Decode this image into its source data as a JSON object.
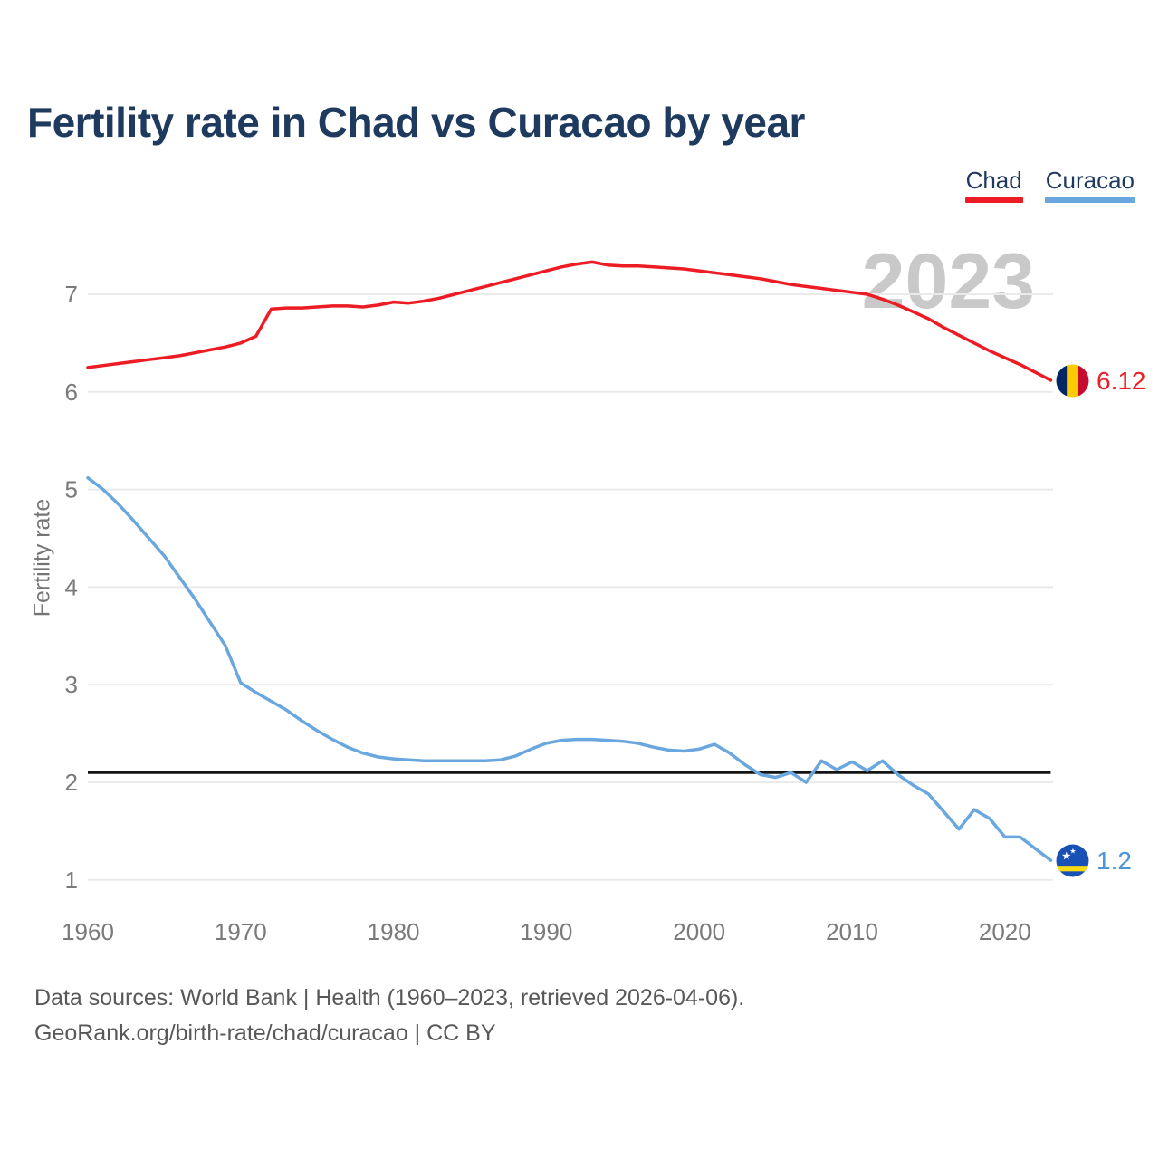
{
  "header": {
    "title": "Fertility rate in Chad vs Curacao by year"
  },
  "legend": {
    "items": [
      {
        "label": "Chad",
        "color": "#ed1c24"
      },
      {
        "label": "Curacao",
        "color": "#6aa7df"
      }
    ]
  },
  "watermark": "2023",
  "axes": {
    "y_label": "Fertility rate",
    "y_ticks": [
      1,
      2,
      3,
      4,
      5,
      6,
      7
    ],
    "x_ticks": [
      1960,
      1970,
      1980,
      1990,
      2000,
      2010,
      2020
    ]
  },
  "benchmark": {
    "value": 2.1,
    "color": "#141414"
  },
  "end_labels": {
    "chad": {
      "value": "6.12"
    },
    "curacao": {
      "value": "1.2"
    }
  },
  "footer": {
    "line1": "Data sources: World Bank | Health (1960–2023, retrieved 2026-04-06).",
    "line2": "GeoRank.org/birth-rate/chad/curacao | CC BY"
  },
  "chart_data": {
    "type": "line",
    "title": "Fertility rate in Chad vs Curacao by year",
    "xlabel": "",
    "ylabel": "Fertility rate",
    "xlim": [
      1960,
      2023
    ],
    "ylim": [
      0.8,
      7.5
    ],
    "grid": true,
    "legend_position": "top-right",
    "benchmark_line": 2.1,
    "watermark": "2023",
    "x": [
      1960,
      1961,
      1962,
      1963,
      1964,
      1965,
      1966,
      1967,
      1968,
      1969,
      1970,
      1971,
      1972,
      1973,
      1974,
      1975,
      1976,
      1977,
      1978,
      1979,
      1980,
      1981,
      1982,
      1983,
      1984,
      1985,
      1986,
      1987,
      1988,
      1989,
      1990,
      1991,
      1992,
      1993,
      1994,
      1995,
      1996,
      1997,
      1998,
      1999,
      2000,
      2001,
      2002,
      2003,
      2004,
      2005,
      2006,
      2007,
      2008,
      2009,
      2010,
      2011,
      2012,
      2013,
      2014,
      2015,
      2016,
      2017,
      2018,
      2019,
      2020,
      2021,
      2022,
      2023
    ],
    "series": [
      {
        "name": "Chad",
        "color": "#ed1c24",
        "values": [
          6.25,
          6.27,
          6.29,
          6.31,
          6.33,
          6.35,
          6.37,
          6.4,
          6.43,
          6.46,
          6.5,
          6.57,
          6.85,
          6.86,
          6.86,
          6.87,
          6.88,
          6.88,
          6.87,
          6.89,
          6.92,
          6.91,
          6.93,
          6.96,
          7.0,
          7.04,
          7.08,
          7.12,
          7.16,
          7.2,
          7.24,
          7.28,
          7.31,
          7.33,
          7.3,
          7.29,
          7.29,
          7.28,
          7.27,
          7.26,
          7.24,
          7.22,
          7.2,
          7.18,
          7.16,
          7.13,
          7.1,
          7.08,
          7.06,
          7.04,
          7.02,
          7.0,
          6.95,
          6.89,
          6.82,
          6.75,
          6.66,
          6.58,
          6.5,
          6.42,
          6.35,
          6.28,
          6.2,
          6.12
        ]
      },
      {
        "name": "Curacao",
        "color": "#6aa7df",
        "values": [
          5.12,
          5.0,
          4.85,
          4.68,
          4.5,
          4.32,
          4.1,
          3.88,
          3.64,
          3.4,
          3.02,
          2.92,
          2.83,
          2.74,
          2.63,
          2.53,
          2.44,
          2.36,
          2.3,
          2.26,
          2.24,
          2.23,
          2.22,
          2.22,
          2.22,
          2.22,
          2.22,
          2.23,
          2.27,
          2.34,
          2.4,
          2.43,
          2.44,
          2.44,
          2.43,
          2.42,
          2.4,
          2.36,
          2.33,
          2.32,
          2.34,
          2.39,
          2.3,
          2.18,
          2.08,
          2.05,
          2.1,
          2.0,
          2.22,
          2.13,
          2.21,
          2.12,
          2.22,
          2.08,
          1.97,
          1.88,
          1.7,
          1.52,
          1.72,
          1.63,
          1.44,
          1.44,
          1.32,
          1.2
        ]
      }
    ]
  }
}
